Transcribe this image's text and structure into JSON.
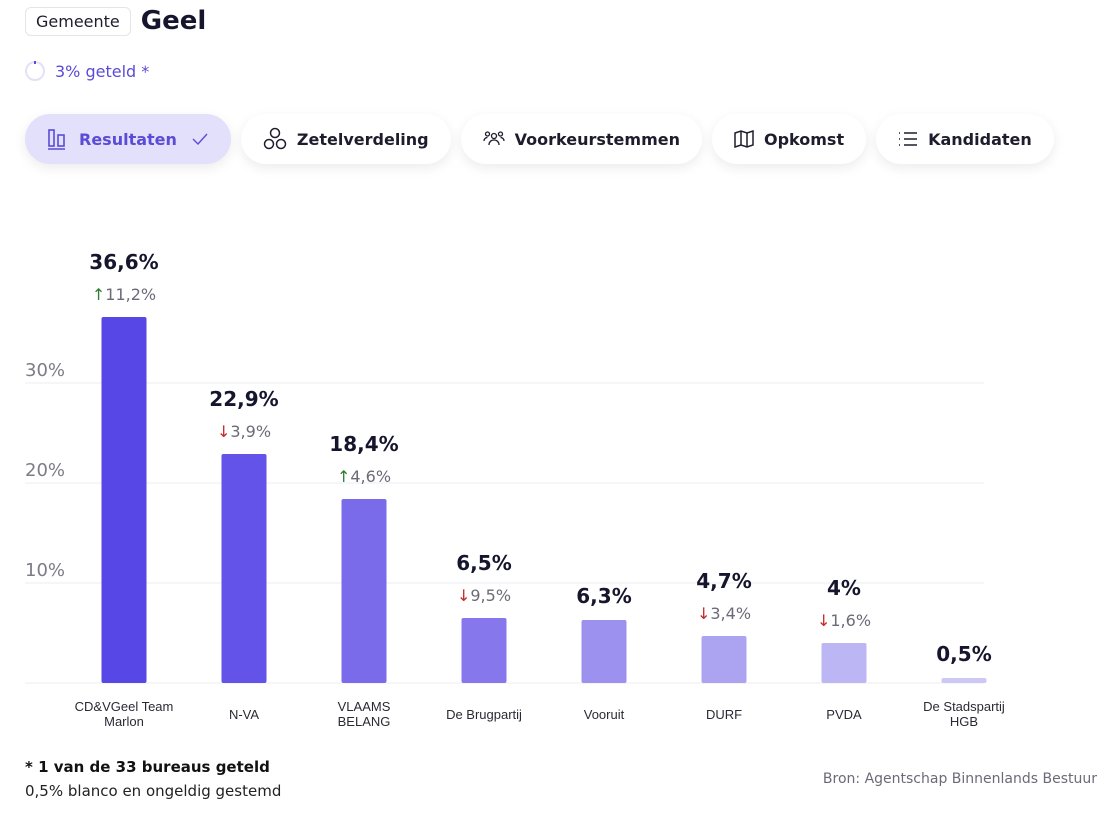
{
  "header": {
    "badge": "Gemeente",
    "title": "Geel"
  },
  "progress": {
    "label": "3% geteld *",
    "percent": 3
  },
  "tabs": [
    {
      "label": "Resultaten",
      "icon": "bar-chart-icon",
      "active": true
    },
    {
      "label": "Zetelverdeling",
      "icon": "circles-icon",
      "active": false
    },
    {
      "label": "Voorkeurstemmen",
      "icon": "people-icon",
      "active": false
    },
    {
      "label": "Opkomst",
      "icon": "map-icon",
      "active": false
    },
    {
      "label": "Kandidaten",
      "icon": "list-icon",
      "active": false
    }
  ],
  "chart_data": {
    "type": "bar",
    "title": "",
    "xlabel": "",
    "ylabel": "",
    "ylim": [
      0,
      40
    ],
    "yticks": [
      10,
      20,
      30
    ],
    "ytick_labels": [
      "10%",
      "20%",
      "30%"
    ],
    "grid": true,
    "categories": [
      "CD&VGeel Team Marlon",
      "N-VA",
      "VLAAMS BELANG",
      "De Brugpartij",
      "Vooruit",
      "DURF",
      "PVDA",
      "De Stadspartij HGB"
    ],
    "category_lines": [
      [
        "CD&VGeel Team",
        "Marlon"
      ],
      [
        "N-VA"
      ],
      [
        "VLAAMS",
        "BELANG"
      ],
      [
        "De Brugpartij"
      ],
      [
        "Vooruit"
      ],
      [
        "DURF"
      ],
      [
        "PVDA"
      ],
      [
        "De Stadspartij",
        "HGB"
      ]
    ],
    "values": [
      36.6,
      22.9,
      18.4,
      6.5,
      6.3,
      4.7,
      4.0,
      0.5
    ],
    "value_labels": [
      "36,6%",
      "22,9%",
      "18,4%",
      "6,5%",
      "6,3%",
      "4,7%",
      "4%",
      "0,5%"
    ],
    "changes": [
      {
        "direction": "up",
        "label": "11,2%"
      },
      {
        "direction": "down",
        "label": "3,9%"
      },
      {
        "direction": "up",
        "label": "4,6%"
      },
      {
        "direction": "down",
        "label": "9,5%"
      },
      null,
      {
        "direction": "down",
        "label": "3,4%"
      },
      {
        "direction": "down",
        "label": "1,6%"
      },
      null
    ],
    "colors": [
      "#5647e6",
      "#6453e8",
      "#7a6beb",
      "#8677ec",
      "#9d91ef",
      "#ada4f1",
      "#bdb6f5",
      "#cdc8f3"
    ],
    "up_color": "#2e7d32",
    "down_color": "#c62828"
  },
  "footer": {
    "note": "* 1 van de 33 bureaus geteld",
    "blank": "0,5% blanco en ongeldig gestemd",
    "source": "Bron: Agentschap Binnenlands Bestuur"
  }
}
